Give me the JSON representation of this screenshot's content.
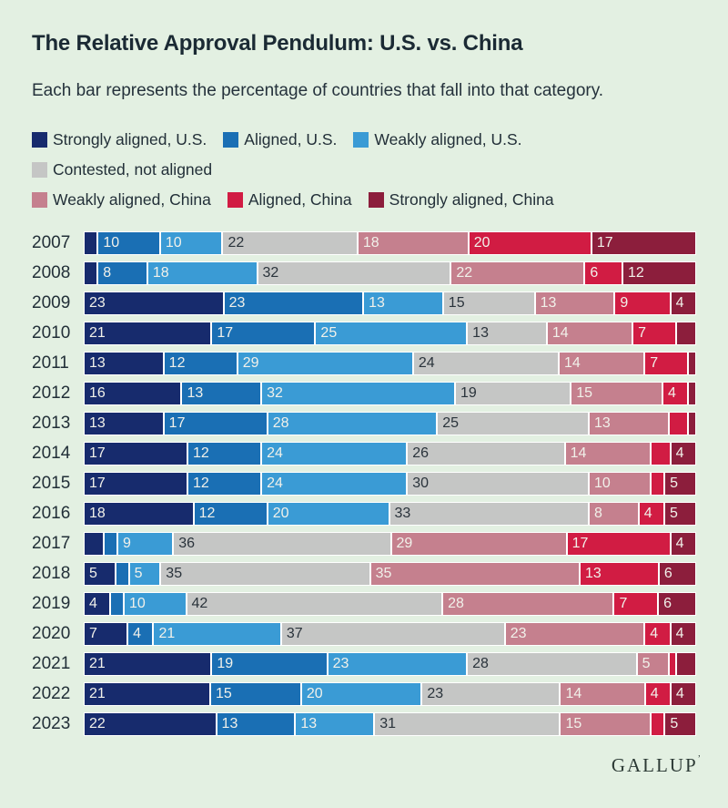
{
  "page": {
    "background_color": "#e3f0e2"
  },
  "header": {
    "title": "The Relative Approval Pendulum: U.S. vs. China",
    "subtitle": "Each bar represents the percentage of countries that fall into that category."
  },
  "legend": {
    "rows": [
      [
        {
          "label": "Strongly aligned, U.S.",
          "color": "#172b6d"
        },
        {
          "label": "Aligned, U.S.",
          "color": "#1a6fb4"
        },
        {
          "label": "Weakly aligned, U.S.",
          "color": "#3a9bd5"
        }
      ],
      [
        {
          "label": "Contested, not aligned",
          "color": "#c5c6c5"
        }
      ],
      [
        {
          "label": "Weakly aligned, China",
          "color": "#c5808e"
        },
        {
          "label": "Aligned, China",
          "color": "#d11c43"
        },
        {
          "label": "Strongly aligned, China",
          "color": "#8c1e3c"
        }
      ]
    ]
  },
  "chart_data": {
    "type": "bar",
    "stacked": true,
    "orientation": "horizontal",
    "unit": "percent of countries",
    "title": "The Relative Approval Pendulum: U.S. vs. China",
    "label_threshold": 4,
    "label_color_light": "#f1f1ea",
    "label_color_dark": "#2a333b",
    "categories": [
      "2007",
      "2008",
      "2009",
      "2010",
      "2011",
      "2012",
      "2013",
      "2014",
      "2015",
      "2016",
      "2017",
      "2018",
      "2019",
      "2020",
      "2021",
      "2022",
      "2023"
    ],
    "series": [
      {
        "name": "Strongly aligned, U.S.",
        "color": "#172b6d",
        "text": "light",
        "values": [
          2,
          2,
          23,
          21,
          13,
          16,
          13,
          17,
          17,
          18,
          3,
          5,
          4,
          7,
          21,
          21,
          22
        ]
      },
      {
        "name": "Aligned, U.S.",
        "color": "#1a6fb4",
        "text": "light",
        "values": [
          10,
          8,
          23,
          17,
          12,
          13,
          17,
          12,
          12,
          12,
          2,
          2,
          2,
          4,
          19,
          15,
          13
        ]
      },
      {
        "name": "Weakly aligned, U.S.",
        "color": "#3a9bd5",
        "text": "light",
        "values": [
          10,
          18,
          13,
          25,
          29,
          32,
          28,
          24,
          24,
          20,
          9,
          5,
          10,
          21,
          23,
          20,
          13
        ]
      },
      {
        "name": "Contested, not aligned",
        "color": "#c5c6c5",
        "text": "dark",
        "values": [
          22,
          32,
          15,
          13,
          24,
          19,
          25,
          26,
          30,
          33,
          36,
          35,
          42,
          37,
          28,
          23,
          31
        ]
      },
      {
        "name": "Weakly aligned, China",
        "color": "#c5808e",
        "text": "light",
        "values": [
          18,
          22,
          13,
          14,
          14,
          15,
          13,
          14,
          10,
          8,
          29,
          35,
          28,
          23,
          5,
          14,
          15
        ]
      },
      {
        "name": "Aligned, China",
        "color": "#d11c43",
        "text": "light",
        "values": [
          20,
          6,
          9,
          7,
          7,
          4,
          3,
          3,
          2,
          4,
          17,
          13,
          7,
          4,
          1,
          4,
          2
        ]
      },
      {
        "name": "Strongly aligned, China",
        "color": "#8c1e3c",
        "text": "light",
        "values": [
          17,
          12,
          4,
          3,
          1,
          1,
          1,
          4,
          5,
          5,
          4,
          6,
          6,
          4,
          3,
          4,
          5
        ]
      }
    ]
  },
  "footer": {
    "brand": "GALLUP",
    "trademark": "’"
  }
}
